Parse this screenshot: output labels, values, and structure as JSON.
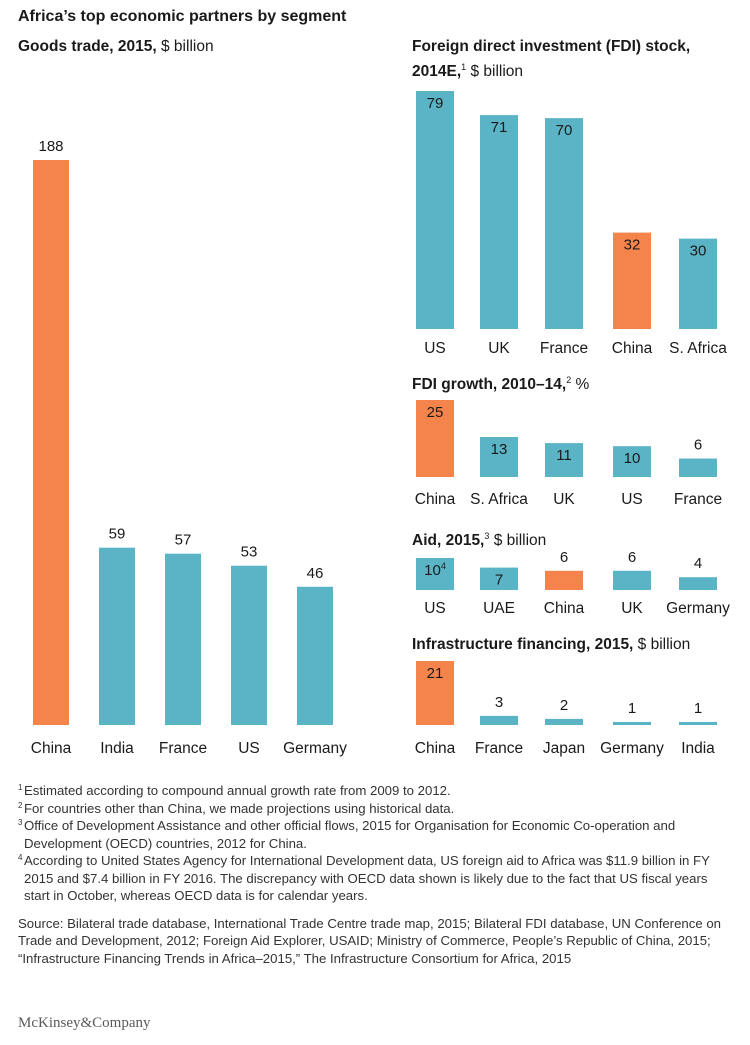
{
  "title": "Africa’s top economic partners by segment",
  "colors": {
    "china": "#f4844c",
    "other": "#5ab4c5",
    "text": "#1a1a1a"
  },
  "chart_data": [
    {
      "type": "bar",
      "title_bold": "Goods trade, 2015,",
      "title_sup": "",
      "title_rest": " $ billion",
      "categories": [
        "China",
        "India",
        "France",
        "US",
        "Germany"
      ],
      "values": [
        188,
        59,
        57,
        53,
        46
      ],
      "value_labels": [
        "188",
        "59",
        "57",
        "53",
        "46"
      ],
      "highlight": "China",
      "label_position": "above"
    },
    {
      "type": "bar",
      "title_bold": "Foreign direct investment (FDI) stock, 2014E,",
      "title_sup": "1",
      "title_rest": " $ billion",
      "categories": [
        "US",
        "UK",
        "France",
        "China",
        "S. Africa"
      ],
      "values": [
        79,
        71,
        70,
        32,
        30
      ],
      "value_labels": [
        "79",
        "71",
        "70",
        "32",
        "30"
      ],
      "highlight": "China",
      "label_position": "inside"
    },
    {
      "type": "bar",
      "title_bold": "FDI growth, 2010–14,",
      "title_sup": "2",
      "title_rest": " %",
      "categories": [
        "China",
        "S. Africa",
        "UK",
        "US",
        "France"
      ],
      "values": [
        25,
        13,
        11,
        10,
        6
      ],
      "value_labels": [
        "25",
        "13",
        "11",
        "10",
        "6"
      ],
      "highlight": "China",
      "label_position": "inside"
    },
    {
      "type": "bar",
      "title_bold": "Aid, 2015,",
      "title_sup": "3",
      "title_rest": " $ billion",
      "categories": [
        "US",
        "UAE",
        "China",
        "UK",
        "Germany"
      ],
      "values": [
        10,
        7,
        6,
        6,
        4
      ],
      "value_labels": [
        "10",
        "7",
        "6",
        "6",
        "4"
      ],
      "label_sups": [
        "4",
        "",
        "",
        "",
        ""
      ],
      "highlight": "China",
      "label_position": "inside"
    },
    {
      "type": "bar",
      "title_bold": "Infrastructure financing, 2015,",
      "title_sup": "",
      "title_rest": " $ billion",
      "categories": [
        "China",
        "France",
        "Japan",
        "Germany",
        "India"
      ],
      "values": [
        21,
        3,
        2,
        1,
        1
      ],
      "value_labels": [
        "21",
        "3",
        "2",
        "1",
        "1"
      ],
      "highlight": "China",
      "label_position": "inside"
    }
  ],
  "footnotes": [
    {
      "n": "1",
      "text": "Estimated according to compound annual growth rate from 2009 to 2012."
    },
    {
      "n": "2",
      "text": "For countries other than China, we made projections using historical data."
    },
    {
      "n": "3",
      "text": "Office of Development Assistance and other official flows, 2015 for Organisation for Economic Co-operation and Development (OECD) countries, 2012 for China."
    },
    {
      "n": "4",
      "text": "According to United States Agency for International Development data, US foreign aid to Africa was $11.9 billion in FY 2015 and $7.4 billion in FY 2016. The discrepancy with OECD data shown is likely due to the fact that US fiscal years start in October, whereas OECD data is for calendar years."
    }
  ],
  "source": "Source: Bilateral trade database, International Trade Centre trade map, 2015; Bilateral FDI database, UN Conference on Trade and Development, 2012; Foreign Aid Explorer, USAID; Ministry of Commerce, People’s Republic of China, 2015; “Infrastructure Financing Trends in Africa–2015,” The Infrastructure Consortium for Africa, 2015",
  "logo": "McKinsey&Company"
}
